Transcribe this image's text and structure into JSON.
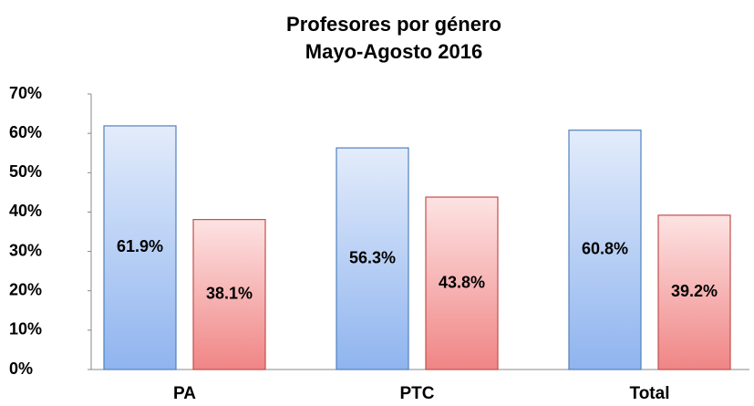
{
  "chart_data": {
    "type": "bar",
    "title": [
      "Profesores por género",
      "Mayo-Agosto 2016"
    ],
    "categories": [
      "PA",
      "PTC",
      "Total"
    ],
    "series": [
      {
        "color": "#4f81bd",
        "values": [
          61.9,
          56.3,
          60.8
        ],
        "value_labels": [
          "61.9%",
          "56.3%",
          "60.8%"
        ]
      },
      {
        "color": "#c0504d",
        "values": [
          38.1,
          43.8,
          39.2
        ],
        "value_labels": [
          "38.1%",
          "43.8%",
          "39.2%"
        ]
      }
    ],
    "ylim": [
      0,
      70
    ],
    "yticks": [
      {
        "value": 0,
        "label": "0%"
      },
      {
        "value": 10,
        "label": "10%"
      },
      {
        "value": 20,
        "label": "20%"
      },
      {
        "value": 30,
        "label": "30%"
      },
      {
        "value": 40,
        "label": "40%"
      },
      {
        "value": 50,
        "label": "50%"
      },
      {
        "value": 60,
        "label": "60%"
      },
      {
        "value": 70,
        "label": "70%"
      }
    ],
    "grid": false
  }
}
